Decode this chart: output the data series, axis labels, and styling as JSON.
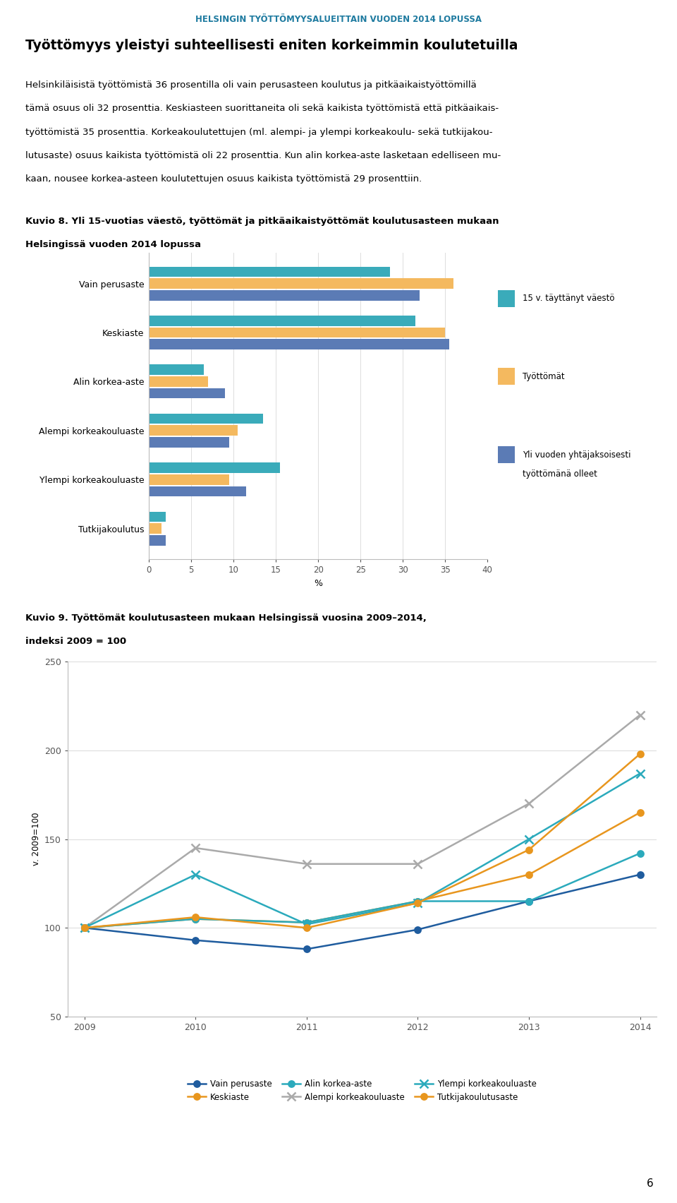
{
  "page_title": "HELSINGIN TYÖTTÖMYYSALUEITTAIN VUODEN 2014 LOPUSSA",
  "page_title_color": "#1F7BA0",
  "heading": "Työttömyys yleistyi suhteellisesti eniten korkeimmin koulutetuilla",
  "body_text_lines": [
    "Helsinkiläisistä työttömistä 36 prosentilla oli vain perusasteen koulutus ja pitkäaikaistyöttömillä",
    "tämä osuus oli 32 prosenttia. Keskiasteen suorittaneita oli sekä kaikista työttömistä että pitkäaikais-",
    "työttömistä 35 prosenttia. Korkeakoulutettujen (ml. alempi- ja ylempi korkeakoulu- sekä tutkijakou-",
    "lutusaste) osuus kaikista työttömistä oli 22 prosenttia. Kun alin korkea-aste lasketaan edelliseen mu-",
    "kaan, nousee korkea-asteen koulutettujen osuus kaikista työttömistä 29 prosenttiin."
  ],
  "fig8_title_line1": "Kuvio 8. Yli 15-vuotias väestö, työttömät ja pitkäaikaistyöttömät koulutusasteen mukaan",
  "fig8_title_line2": "Helsingissä vuoden 2014 lopussa",
  "bar_categories": [
    "Vain perusaste",
    "Keskiaste",
    "Alin korkea-aste",
    "Alempi korkeakouluaste",
    "Ylempi korkeakouluaste",
    "Tutkijakoulutus"
  ],
  "bar_series": {
    "15v_vaesto": [
      28.5,
      31.5,
      6.5,
      13.5,
      15.5,
      2.0
    ],
    "tyottomat": [
      36.0,
      35.0,
      7.0,
      10.5,
      9.5,
      1.5
    ],
    "pitka_tyottomat": [
      32.0,
      35.5,
      9.0,
      9.5,
      11.5,
      2.0
    ]
  },
  "bar_colors": {
    "15v_vaesto": "#3AABBA",
    "tyottomat": "#F4B95F",
    "pitka_tyottomat": "#5B7BB5"
  },
  "bar_xlim": [
    0,
    40
  ],
  "bar_xticks": [
    0,
    5,
    10,
    15,
    20,
    25,
    30,
    35,
    40
  ],
  "bar_xlabel": "%",
  "legend_labels": [
    "15 v. täyttänyt väestö",
    "Työttömät",
    "Yli vuoden yhtäjaksoisesti\ntyöttömänä olleet"
  ],
  "fig9_title_line1": "Kuvio 9. Työttömät koulutusasteen mukaan Helsingissä vuosina 2009–2014,",
  "fig9_title_line2": "indeksi 2009 = 100",
  "fig9_ylabel": "v. 2009=100",
  "fig9_xlim": [
    2009,
    2014
  ],
  "fig9_xticks": [
    2009,
    2010,
    2011,
    2012,
    2013,
    2014
  ],
  "fig9_ylim": [
    50,
    250
  ],
  "fig9_yticks": [
    50,
    100,
    150,
    200,
    250
  ],
  "fig9_series": {
    "Vain perusaste": [
      100,
      93,
      88,
      99,
      115,
      130
    ],
    "Keskiaste": [
      100,
      105,
      103,
      115,
      130,
      165
    ],
    "Alin korkea-aste": [
      100,
      105,
      103,
      115,
      115,
      142
    ],
    "Alempi korkeakouluaste": [
      100,
      145,
      136,
      136,
      170,
      220
    ],
    "Ylempi korkeakouluaste": [
      100,
      130,
      102,
      114,
      150,
      187
    ],
    "Tutkijakoulutusaste": [
      100,
      106,
      100,
      114,
      144,
      198
    ]
  },
  "fig9_colors": {
    "Vain perusaste": "#1F5C9E",
    "Keskiaste": "#E8961E",
    "Alin korkea-aste": "#2BAABC",
    "Alempi korkeakouluaste": "#AAAAAA",
    "Ylempi korkeakouluaste": "#2BAABC",
    "Tutkijakoulutusaste": "#E8961E"
  },
  "fig9_markers": {
    "Vain perusaste": "o",
    "Keskiaste": "o",
    "Alin korkea-aste": "o",
    "Alempi korkeakouluaste": "x",
    "Ylempi korkeakouluaste": "x",
    "Tutkijakoulutusaste": "o"
  },
  "fig9_linestyles": {
    "Vain perusaste": "-",
    "Keskiaste": "-",
    "Alin korkea-aste": "-",
    "Alempi korkeakouluaste": "-",
    "Ylempi korkeakouluaste": "-",
    "Tutkijakoulutusaste": "-"
  },
  "fig9_legend_order": [
    "Vain perusaste",
    "Keskiaste",
    "Alin korkea-aste",
    "Alempi korkeakouluaste",
    "Ylempi korkeakouluaste",
    "Tutkijakoulutusaste"
  ],
  "page_number": "6"
}
